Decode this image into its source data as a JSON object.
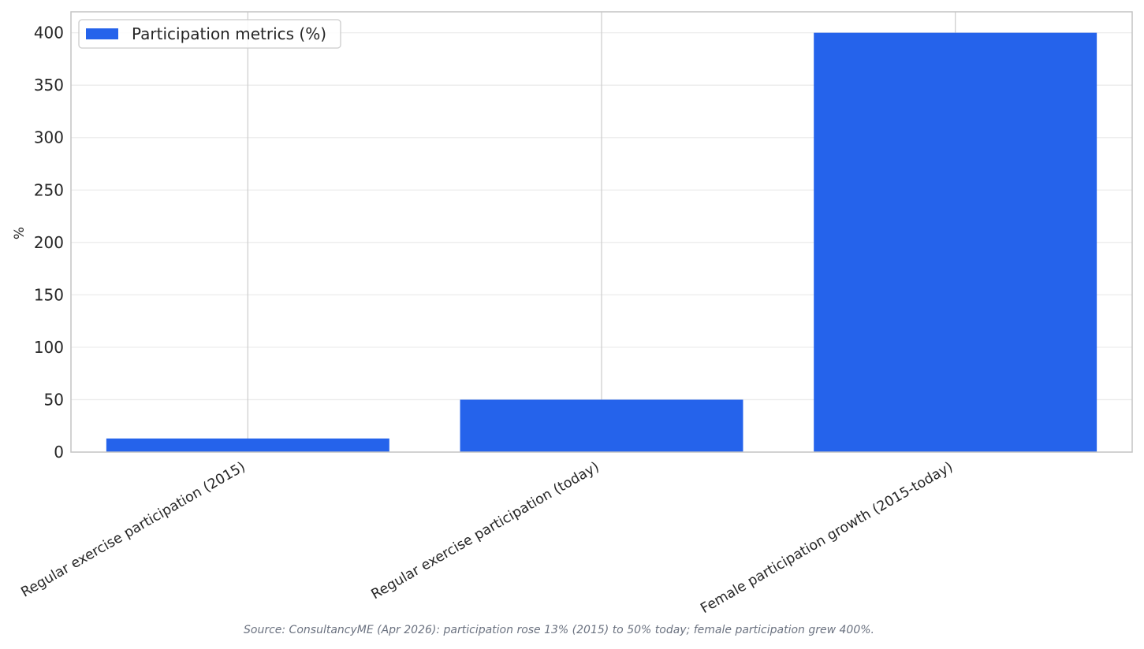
{
  "chart_data": {
    "type": "bar",
    "categories": [
      "Regular exercise participation (2015)",
      "Regular exercise participation (today)",
      "Female participation growth (2015-today)"
    ],
    "series": [
      {
        "name": "Participation metrics (%)",
        "values": [
          13,
          50,
          400
        ],
        "color": "#2563eb"
      }
    ],
    "ylabel": "%",
    "ylim": [
      0,
      420
    ],
    "yticks": [
      0,
      50,
      100,
      150,
      200,
      250,
      300,
      350,
      400
    ],
    "grid": true,
    "legend_position": "top-left"
  },
  "source_note": "Source: ConsultancyME (Apr 2026): participation rose 13% (2015) to 50% today; female participation grew 400%."
}
